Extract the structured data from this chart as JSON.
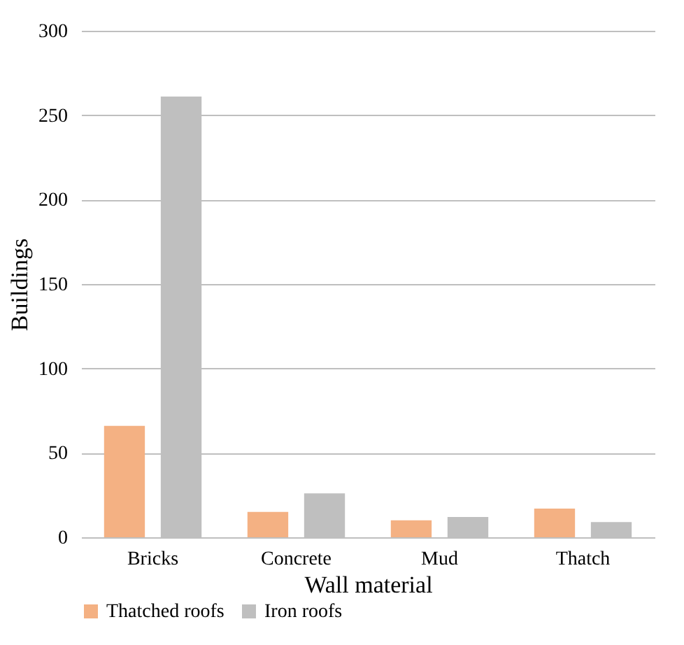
{
  "chart_data": {
    "type": "bar",
    "xlabel": "Wall material",
    "ylabel": "Buildings",
    "categories": [
      "Bricks",
      "Concrete",
      "Mud",
      "Thatch"
    ],
    "series": [
      {
        "name": "Thatched roofs",
        "color": "#f4b183",
        "values": [
          66,
          15,
          10,
          17
        ]
      },
      {
        "name": "Iron roofs",
        "color": "#bfbfbf",
        "values": [
          261,
          26,
          12,
          9
        ]
      }
    ],
    "ylim": [
      0,
      300
    ],
    "yticks": [
      0,
      50,
      100,
      150,
      200,
      250,
      300
    ],
    "grid": "y",
    "legend": "bottom"
  }
}
